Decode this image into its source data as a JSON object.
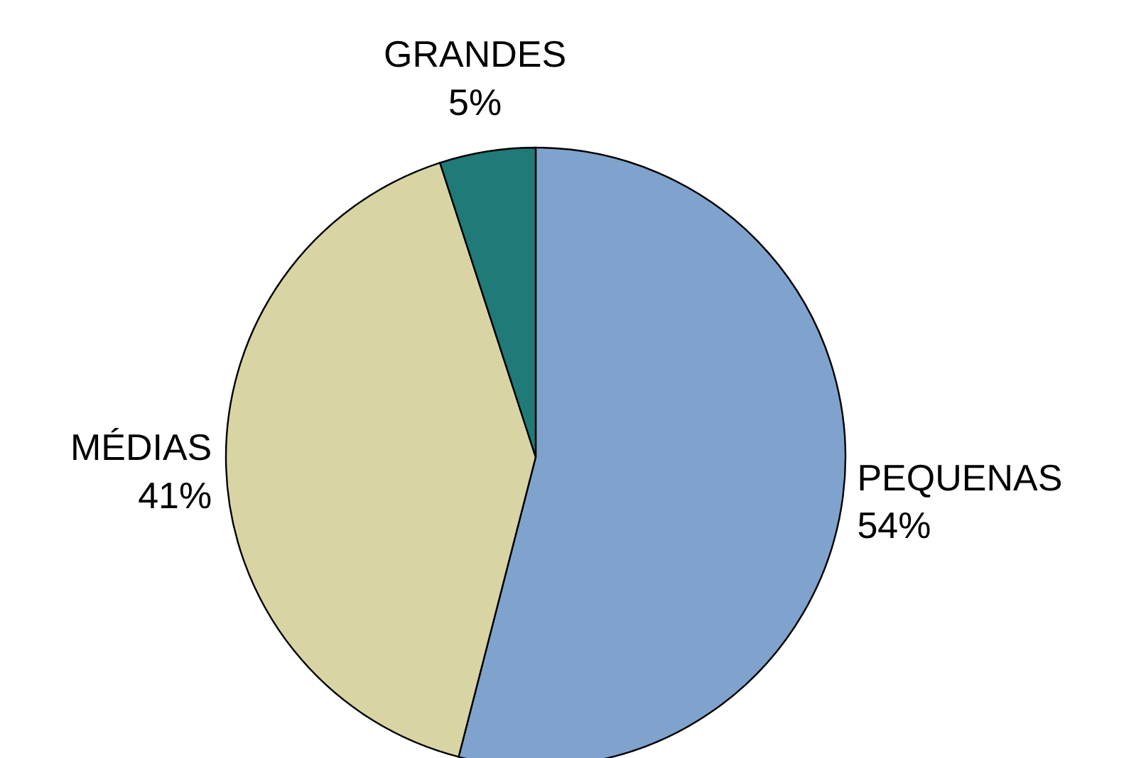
{
  "chart_data": {
    "type": "pie",
    "categories": [
      "PEQUENAS",
      "MÉDIAS",
      "GRANDES"
    ],
    "values": [
      54,
      41,
      5
    ],
    "colors": [
      "#7fa3cc",
      "#d8d4a4",
      "#1f7a78"
    ],
    "value_labels": [
      "54%",
      "41%",
      "5%"
    ]
  }
}
